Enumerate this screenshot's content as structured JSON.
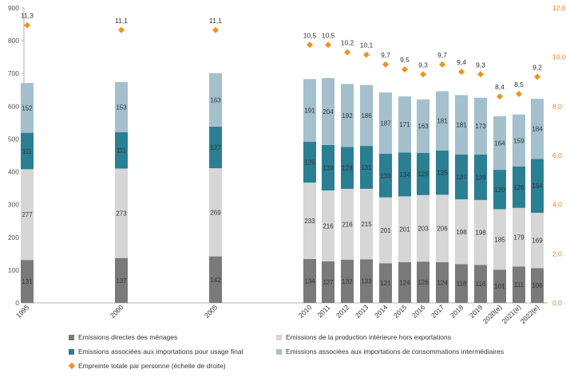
{
  "chart_data": {
    "type": "bar",
    "stacked": true,
    "categories": [
      "1995",
      "2000",
      "2005",
      "2010",
      "2011",
      "2012",
      "2013",
      "2014",
      "2015",
      "2016",
      "2017",
      "2018",
      "2019",
      "2020(e)",
      "2021(e)",
      "2022(e)"
    ],
    "series": [
      {
        "name": "Emissions directes des ménages",
        "color": "#7a7a7a",
        "values": [
          131,
          137,
          142,
          134,
          127,
          132,
          133,
          121,
          124,
          126,
          124,
          118,
          116,
          101,
          111,
          106
        ]
      },
      {
        "name": "Emissions de la production intérieure hors exportations",
        "color": "#d6d6d6",
        "values": [
          277,
          273,
          269,
          233,
          216,
          216,
          215,
          201,
          201,
          203,
          206,
          198,
          198,
          185,
          179,
          169
        ]
      },
      {
        "name": "Emissions associées aux importations pour usage final",
        "color": "#2a7f93",
        "values": [
          111,
          111,
          127,
          125,
          139,
          128,
          131,
          133,
          134,
          129,
          135,
          137,
          139,
          120,
          126,
          164
        ]
      },
      {
        "name": "Emissions associées aux importations de consommations intermédiaires",
        "color": "#a3c0cc",
        "values": [
          152,
          153,
          163,
          191,
          204,
          192,
          186,
          187,
          171,
          163,
          181,
          181,
          173,
          164,
          159,
          184
        ]
      }
    ],
    "line_series": {
      "name": "Empreinte totale par personne (échelle de droite)",
      "color": "#f0921e",
      "marker": "diamond",
      "axis": "right",
      "values": [
        11.3,
        11.1,
        11.1,
        10.5,
        10.5,
        10.2,
        10.1,
        9.7,
        9.5,
        9.3,
        9.7,
        9.4,
        9.3,
        8.4,
        8.5,
        9.2
      ],
      "labels": [
        "11,3",
        "11,1",
        "11,1",
        "10,5",
        "10,5",
        "10,2",
        "10,1",
        "9,7",
        "9,5",
        "9,3",
        "9,7",
        "9,4",
        "9,3",
        "8,4",
        "8,5",
        "9,2"
      ]
    },
    "ylim": [
      0,
      900
    ],
    "yticks": [
      "0",
      "100",
      "200",
      "300",
      "400",
      "500",
      "600",
      "700",
      "800",
      "900"
    ],
    "y2lim": [
      0,
      12
    ],
    "y2ticks": [
      "0,0",
      "2,0",
      "4,0",
      "6,0",
      "8,0",
      "10,0",
      "12,0"
    ],
    "grid": false,
    "legend_position": "bottom"
  }
}
